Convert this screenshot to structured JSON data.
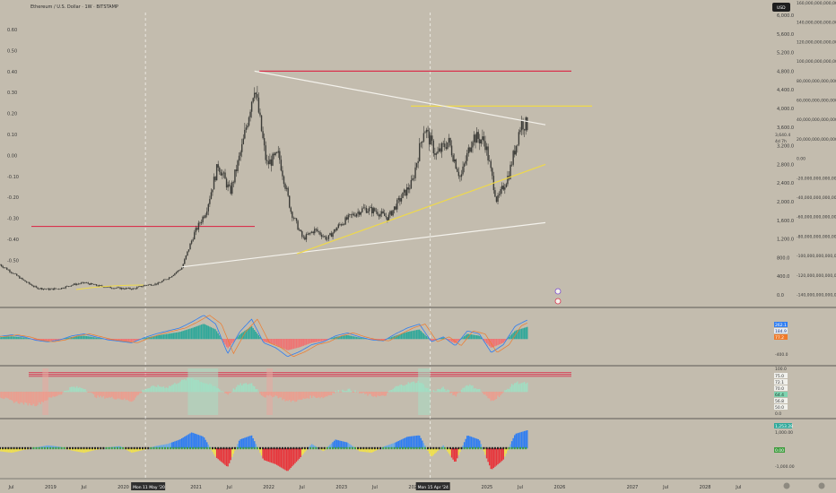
{
  "header": {
    "title": "Ethereum / U.S. Dollar · 1W · BITSTAMP",
    "currency": "USD"
  },
  "colors": {
    "background": "#c3bcae",
    "separator": "#3a3a3a",
    "candle": "#3c3c38",
    "red_line": "#d9324d",
    "white_line": "#f4f2ec",
    "yellow_line": "#efd94a",
    "macd_pos": "#2fa89a",
    "macd_neg": "#f07272",
    "rsi_pos": "#9fe0c4",
    "rsi_neg": "#f09a8c",
    "blue": "#2e7df2",
    "green": "#3f9d3f",
    "yellow": "#f2e24a",
    "red": "#e8343a"
  },
  "left_axis_labels": [
    "0.60",
    "0.50",
    "0.40",
    "0.30",
    "0.20",
    "0.10",
    "0.00",
    "-0.10",
    "-0.20",
    "-0.30",
    "-0.40",
    "-0.50"
  ],
  "price_axis_labels": [
    "6,000.0",
    "5,600.0",
    "5,200.0",
    "4,800.0",
    "4,400.0",
    "4,000.0",
    "3,600.0",
    "3,200.0",
    "2,800.0",
    "2,400.0",
    "2,000.0",
    "1,600.0",
    "1,200.0",
    "800.0",
    "400.0",
    "0.0"
  ],
  "volume_axis_labels": [
    "160,000,000,000,000.00",
    "140,000,000,000,000.00",
    "120,000,000,000,000.00",
    "100,000,000,000,000.00",
    "80,000,000,000,000.00",
    "60,000,000,000,000.00",
    "40,000,000,000,000.00",
    "20,000,000,000,000.00",
    "0.00",
    "-20,000,000,000,000.00",
    "-40,000,000,000,000.00",
    "-60,000,000,000,000.00",
    "-80,000,000,000,000.00",
    "-100,000,000,000,000.00",
    "-120,000,000,000,000.00",
    "-140,000,000,000,000.00"
  ],
  "price_tags": {
    "last": "3,640.4",
    "sub": "4d 7h"
  },
  "macd_axis": {
    "neg": "-400.0"
  },
  "macd_tags": [
    "262.1",
    "184.9",
    "77.2"
  ],
  "rsi_axis": {
    "top": "100.0",
    "bottom": "0.0"
  },
  "rsi_tags": [
    "75.0",
    "72.1",
    "70.0",
    "64.4",
    "56.8",
    "50.0"
  ],
  "wt_axis": {
    "top": "1,000.00",
    "bottom": "-1,000.00"
  },
  "wt_tags": [
    "1,253.28",
    "0.00"
  ],
  "x_axis": {
    "labels": [
      "Jul",
      "2019",
      "Jul",
      "2020",
      "2021",
      "Jul",
      "2022",
      "Jul",
      "2023",
      "Jul",
      "2024",
      "Jul",
      "2025",
      "Jul",
      "2026",
      "2027",
      "Jul",
      "2028",
      "Jul"
    ],
    "cursor_labels": [
      "Mon 11 May '20",
      "Mon 15 Apr '24"
    ]
  },
  "chart_data": {
    "type": "line",
    "title": "Ethereum / U.S. Dollar · 1W · BITSTAMP",
    "x_range": [
      "2018-05",
      "2028-12"
    ],
    "y_range": [
      0,
      6000
    ],
    "price_series": {
      "x": [
        "2018-05",
        "2018-07",
        "2018-09",
        "2018-11",
        "2019-01",
        "2019-03",
        "2019-05",
        "2019-07",
        "2019-09",
        "2019-11",
        "2020-01",
        "2020-03",
        "2020-05",
        "2020-07",
        "2020-09",
        "2020-11",
        "2021-01",
        "2021-03",
        "2021-05",
        "2021-07",
        "2021-09",
        "2021-11",
        "2022-01",
        "2022-03",
        "2022-05",
        "2022-07",
        "2022-09",
        "2022-11",
        "2023-01",
        "2023-03",
        "2023-05",
        "2023-07",
        "2023-09",
        "2023-11",
        "2024-01",
        "2024-03",
        "2024-05",
        "2024-07",
        "2024-09",
        "2024-11",
        "2025-01",
        "2025-03",
        "2025-05",
        "2025-07",
        "2025-08"
      ],
      "y": [
        650,
        480,
        300,
        150,
        120,
        140,
        220,
        260,
        200,
        160,
        140,
        130,
        210,
        240,
        380,
        580,
        1300,
        1800,
        2800,
        2200,
        3200,
        4500,
        2800,
        3000,
        1800,
        1200,
        1400,
        1200,
        1500,
        1700,
        1850,
        1800,
        1650,
        2050,
        2400,
        3600,
        3000,
        3300,
        2500,
        3400,
        3300,
        2000,
        2600,
        3700,
        3640
      ]
    },
    "horizontal_levels": [
      {
        "label": "upper-red",
        "y": 4800
      },
      {
        "label": "lower-red",
        "y": 1470
      },
      {
        "label": "yellow-top",
        "y": 4050
      }
    ],
    "trendlines": [
      {
        "color": "white",
        "from": [
          "2021-11",
          4800
        ],
        "to": [
          "2025-11",
          3650
        ]
      },
      {
        "color": "white",
        "from": [
          "2020-11",
          600
        ],
        "to": [
          "2025-11",
          1550
        ]
      },
      {
        "color": "yellow",
        "from": [
          "2022-06",
          880
        ],
        "to": [
          "2025-11",
          2800
        ]
      }
    ],
    "macd_values": [
      5,
      8,
      4,
      -3,
      -6,
      -2,
      6,
      10,
      4,
      -2,
      -5,
      -8,
      2,
      10,
      16,
      22,
      34,
      48,
      30,
      -30,
      14,
      40,
      -8,
      -18,
      -36,
      -26,
      -12,
      -6,
      6,
      12,
      4,
      -2,
      -4,
      10,
      22,
      30,
      -6,
      4,
      -14,
      16,
      10,
      -28,
      -12,
      26,
      38
    ],
    "rsi_values": [
      40,
      30,
      25,
      22,
      35,
      45,
      60,
      58,
      40,
      38,
      36,
      30,
      55,
      62,
      60,
      72,
      80,
      70,
      60,
      45,
      65,
      68,
      40,
      42,
      30,
      32,
      40,
      38,
      50,
      55,
      48,
      42,
      40,
      60,
      68,
      72,
      50,
      58,
      42,
      66,
      55,
      30,
      48,
      70,
      68
    ],
    "wt_values": [
      -40,
      -60,
      -20,
      10,
      40,
      20,
      -30,
      -60,
      -20,
      10,
      30,
      -60,
      -20,
      30,
      60,
      120,
      220,
      160,
      -120,
      -260,
      120,
      180,
      -160,
      -220,
      -320,
      -140,
      60,
      -40,
      120,
      80,
      -40,
      -60,
      20,
      80,
      160,
      180,
      -120,
      40,
      -200,
      180,
      120,
      -300,
      -160,
      200,
      250
    ],
    "axis_cursors": [
      "2020-05",
      "2024-04"
    ]
  }
}
